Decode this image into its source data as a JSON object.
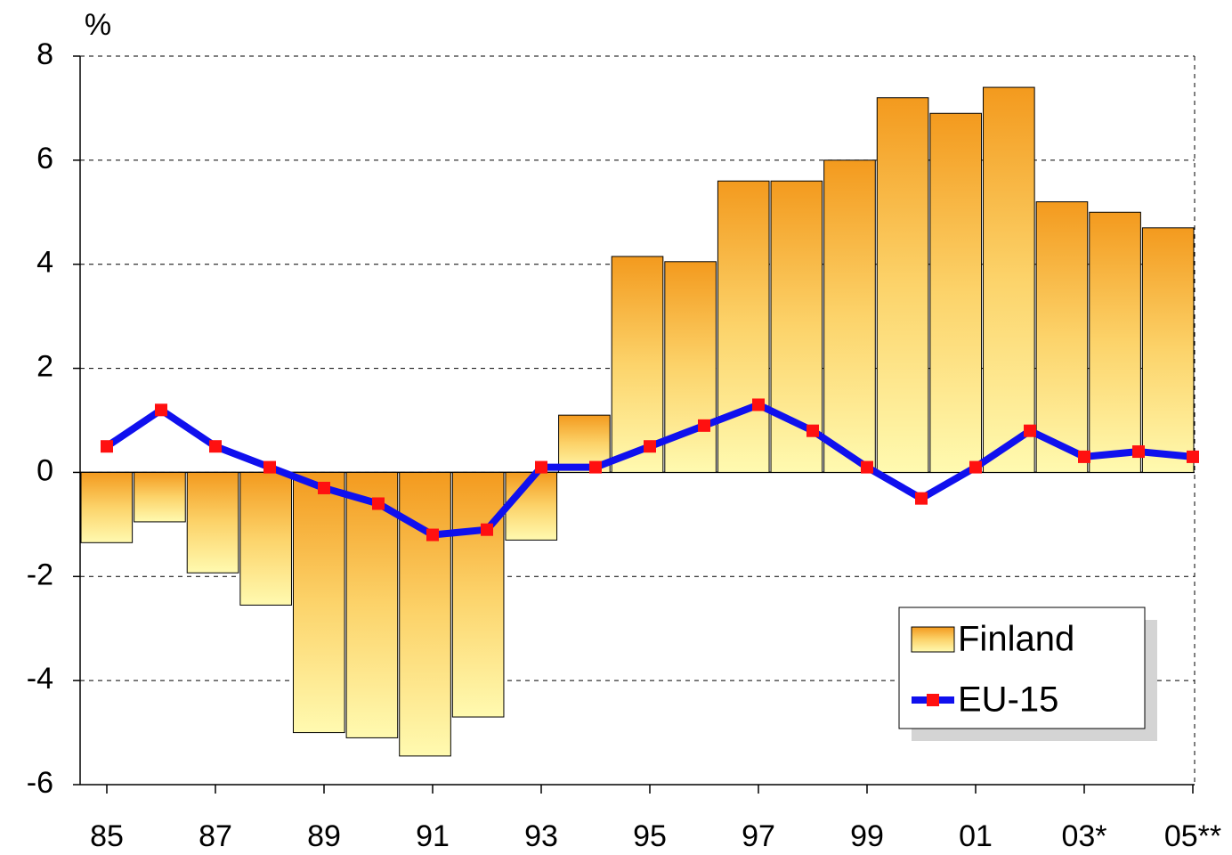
{
  "chart_data": {
    "type": "bar_line",
    "ylabel": "%",
    "categories": [
      "85",
      null,
      "87",
      null,
      "89",
      null,
      "91",
      null,
      "93",
      null,
      "95",
      null,
      "97",
      null,
      "99",
      null,
      "01",
      null,
      "03*",
      null,
      "05**"
    ],
    "series": [
      {
        "name": "Finland",
        "type": "bar",
        "color": "#f39a1e",
        "values": [
          -1.35,
          -0.95,
          -1.93,
          -2.55,
          -5.0,
          -5.1,
          -5.45,
          -4.7,
          -1.3,
          1.1,
          4.15,
          4.05,
          5.6,
          5.6,
          6.0,
          7.2,
          6.9,
          7.4,
          5.2,
          5.0,
          4.7
        ]
      },
      {
        "name": "EU-15",
        "type": "line",
        "color": "#1010ee",
        "marker_color": "#ff1010",
        "values": [
          0.5,
          1.2,
          0.5,
          0.1,
          -0.3,
          -0.6,
          -1.2,
          -1.1,
          0.1,
          0.1,
          0.5,
          0.9,
          1.3,
          0.8,
          0.1,
          -0.5,
          0.1,
          0.8,
          0.3,
          0.4,
          0.3
        ]
      }
    ],
    "ylim": [
      -6,
      8
    ],
    "yticks": [
      -6,
      -4,
      -2,
      0,
      2,
      4,
      6,
      8
    ],
    "grid": true,
    "legend": "lower right"
  }
}
